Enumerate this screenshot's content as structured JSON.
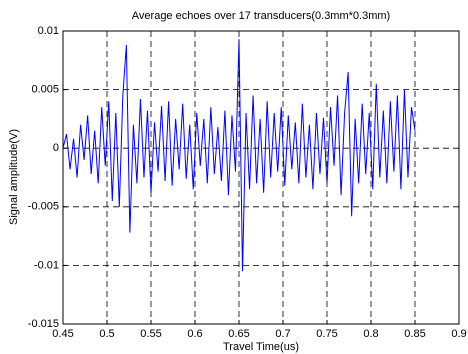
{
  "chart_data": {
    "type": "line",
    "title": "Average echoes over 17 transducers(0.3mm*0.3mm)",
    "x_label": "Travel Time(us)",
    "y_label": "Signal amplitude(V)",
    "x": [
      0.45,
      0.454,
      0.458,
      0.462,
      0.466,
      0.47,
      0.474,
      0.478,
      0.482,
      0.486,
      0.49,
      0.494,
      0.498,
      0.502,
      0.506,
      0.51,
      0.514,
      0.518,
      0.522,
      0.526,
      0.53,
      0.534,
      0.538,
      0.542,
      0.546,
      0.55,
      0.554,
      0.558,
      0.562,
      0.566,
      0.57,
      0.574,
      0.578,
      0.582,
      0.586,
      0.59,
      0.594,
      0.598,
      0.602,
      0.606,
      0.61,
      0.614,
      0.618,
      0.622,
      0.626,
      0.63,
      0.634,
      0.638,
      0.642,
      0.646,
      0.65,
      0.654,
      0.658,
      0.662,
      0.666,
      0.67,
      0.674,
      0.678,
      0.682,
      0.686,
      0.69,
      0.694,
      0.698,
      0.702,
      0.706,
      0.71,
      0.714,
      0.718,
      0.722,
      0.726,
      0.73,
      0.734,
      0.738,
      0.742,
      0.746,
      0.75,
      0.754,
      0.758,
      0.762,
      0.766,
      0.77,
      0.774,
      0.778,
      0.782,
      0.786,
      0.79,
      0.794,
      0.798,
      0.802,
      0.806,
      0.81,
      0.814,
      0.818,
      0.822,
      0.826,
      0.83,
      0.834,
      0.838,
      0.842,
      0.846,
      0.85
    ],
    "series": [
      {
        "name": "Average echo",
        "color": "#0000ff",
        "values": [
          0,
          0.0012,
          -0.0018,
          0.0008,
          -0.0025,
          0.002,
          -0.001,
          0.0028,
          -0.0022,
          0.0015,
          -0.003,
          0.0035,
          -0.0015,
          0.004,
          -0.0045,
          0.003,
          -0.005,
          0.0045,
          0.0088,
          -0.0072,
          0.002,
          -0.003,
          0.0042,
          -0.0025,
          0.0032,
          -0.0038,
          0.0022,
          -0.002,
          0.0036,
          -0.0028,
          0.004,
          -0.0032,
          0.0025,
          -0.0018,
          0.0038,
          -0.0026,
          0.002,
          -0.0035,
          0.003,
          -0.0015,
          0.0025,
          -0.003,
          0.0035,
          -0.0022,
          0.0018,
          -0.0028,
          0.0032,
          -0.004,
          0.0028,
          -0.002,
          0.0093,
          -0.0105,
          0.003,
          -0.0035,
          0.0045,
          -0.003,
          0.0025,
          -0.0038,
          0.004,
          -0.0025,
          0.003,
          -0.002,
          0.0035,
          -0.0032,
          0.0028,
          -0.0018,
          0.0022,
          -0.003,
          0.0038,
          -0.0025,
          0.002,
          -0.0035,
          0.003,
          -0.0022,
          0.0026,
          -0.003,
          0.0035,
          -0.0015,
          0.0045,
          -0.004,
          0.003,
          0.0065,
          -0.0058,
          0.0025,
          -0.003,
          0.0038,
          -0.0022,
          0.003,
          -0.0035,
          0.0055,
          -0.0025,
          0.0032,
          -0.003,
          0.004,
          -0.002,
          0.0045,
          -0.0035,
          0.005,
          -0.0025,
          0.0035,
          0.0015
        ]
      }
    ],
    "xlim": [
      0.45,
      0.9
    ],
    "xticks": [
      0.45,
      0.5,
      0.55,
      0.6,
      0.65,
      0.7,
      0.75,
      0.8,
      0.85,
      0.9
    ],
    "ylim": [
      -0.015,
      0.01
    ],
    "yticks": [
      -0.015,
      -0.01,
      -0.005,
      0,
      0.005,
      0.01
    ],
    "grid": true
  }
}
